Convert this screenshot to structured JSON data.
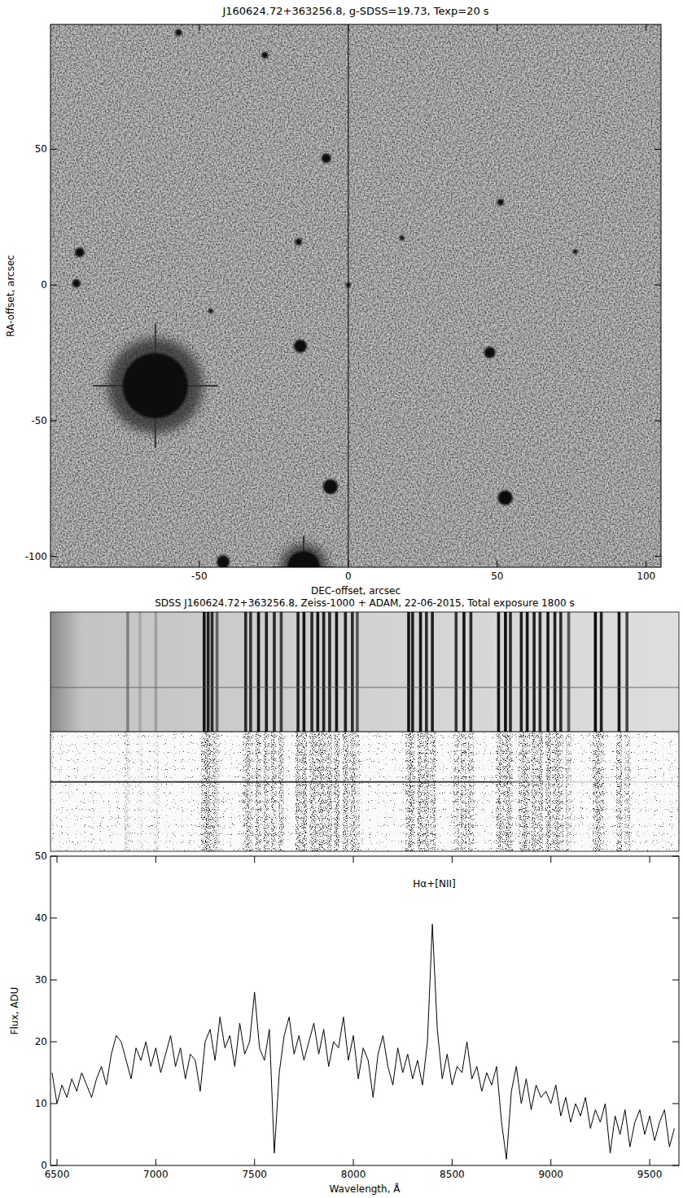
{
  "chart_data": [
    {
      "type": "image",
      "title": "J160624.72+363256.8, g-SDSS=19.73, Texp=20 s",
      "x_label": "DEC-offset, arcsec",
      "y_label": "RA-offset, arcsec",
      "xlim": [
        -100,
        105
      ],
      "ylim": [
        -104,
        96
      ],
      "xticks": [
        -50,
        0,
        50,
        100
      ],
      "yticks": [
        -100,
        -50,
        0,
        50
      ],
      "x": [
        0,
        -7.4,
        -16.7,
        -16.1,
        -6,
        47.5,
        52.7,
        51.1,
        18,
        76.2,
        -90.2,
        -91.3,
        -64.8,
        -15,
        -42,
        -28,
        -57,
        -46.2
      ],
      "y": [
        0,
        46.7,
        15.9,
        -22.5,
        -74.3,
        -24.9,
        -78.4,
        30.5,
        17.4,
        12.3,
        12,
        0.6,
        -37.1,
        -104,
        -102,
        84.7,
        93,
        -9.6
      ],
      "sizes": [
        0.8,
        1.6,
        1.1,
        2.2,
        2.5,
        1.9,
        2.5,
        1.1,
        0.8,
        0.8,
        1.6,
        1.4,
        11,
        5.5,
        2.2,
        1.1,
        1.1,
        0.8
      ],
      "slit_x": 0
    },
    {
      "type": "spectrum_2d",
      "title": "SDSS J160624.72+363256.8, Zeiss-1000 + ADAM, 22-06-2015, Total exposure 1800 s",
      "xlim": [
        6467,
        9648
      ],
      "sky_lines": [
        6858,
        6920,
        7000,
        7245,
        7265,
        7285,
        7310,
        7455,
        7480,
        7520,
        7560,
        7600,
        7635,
        7720,
        7750,
        7790,
        7820,
        7850,
        7880,
        7915,
        7960,
        7995,
        8020,
        8280,
        8300,
        8340,
        8370,
        8400,
        8520,
        8560,
        8595,
        8735,
        8770,
        8795,
        8850,
        8880,
        8915,
        8945,
        8985,
        9020,
        9050,
        9090,
        9225,
        9255,
        9345,
        9385
      ],
      "sky_strengths": [
        0.35,
        0.15,
        0.2,
        0.9,
        0.85,
        0.8,
        0.5,
        0.8,
        0.75,
        0.9,
        0.85,
        0.8,
        0.7,
        0.85,
        0.9,
        0.8,
        0.9,
        0.85,
        0.8,
        0.9,
        0.85,
        0.8,
        0.6,
        0.9,
        0.85,
        0.9,
        0.8,
        0.85,
        0.75,
        0.9,
        0.8,
        0.9,
        0.95,
        0.8,
        0.85,
        0.9,
        0.85,
        0.8,
        0.9,
        0.85,
        0.8,
        0.6,
        0.95,
        0.85,
        0.9,
        0.7
      ]
    },
    {
      "type": "line",
      "x_label": "Wavelength, Å",
      "y_label": "Flux, ADU",
      "xlim": [
        6467,
        9648
      ],
      "ylim": [
        0,
        50
      ],
      "xticks": [
        6500,
        7000,
        7500,
        8000,
        8500,
        9000,
        9500
      ],
      "yticks": [
        0,
        10,
        20,
        30,
        40,
        50
      ],
      "color": "#000000",
      "annotations": [
        {
          "text": "Hα+[NII]",
          "x": 8410,
          "y": 45
        }
      ],
      "x": [
        6475,
        6500,
        6525,
        6550,
        6575,
        6600,
        6625,
        6650,
        6675,
        6700,
        6725,
        6750,
        6775,
        6800,
        6825,
        6850,
        6875,
        6900,
        6925,
        6950,
        6975,
        7000,
        7025,
        7050,
        7075,
        7100,
        7125,
        7150,
        7175,
        7200,
        7225,
        7250,
        7275,
        7300,
        7325,
        7350,
        7375,
        7400,
        7425,
        7450,
        7475,
        7500,
        7525,
        7550,
        7575,
        7600,
        7625,
        7650,
        7675,
        7700,
        7725,
        7750,
        7775,
        7800,
        7825,
        7850,
        7875,
        7900,
        7925,
        7950,
        7975,
        8000,
        8025,
        8050,
        8075,
        8100,
        8125,
        8150,
        8175,
        8200,
        8225,
        8250,
        8275,
        8300,
        8325,
        8350,
        8375,
        8400,
        8425,
        8450,
        8475,
        8500,
        8525,
        8550,
        8575,
        8600,
        8625,
        8650,
        8675,
        8700,
        8725,
        8750,
        8775,
        8800,
        8825,
        8850,
        8875,
        8900,
        8925,
        8950,
        8975,
        9000,
        9025,
        9050,
        9075,
        9100,
        9125,
        9150,
        9175,
        9200,
        9225,
        9250,
        9275,
        9300,
        9325,
        9350,
        9375,
        9400,
        9425,
        9450,
        9475,
        9500,
        9525,
        9550,
        9575,
        9600,
        9625
      ],
      "values": [
        15,
        10,
        13,
        11,
        14,
        12,
        15,
        13,
        11,
        14,
        16,
        13,
        18,
        21,
        20,
        17,
        14,
        19,
        17,
        20,
        16,
        19,
        15,
        18,
        21,
        16,
        19,
        14,
        18,
        17,
        12,
        20,
        22,
        17,
        24,
        19,
        21,
        16,
        23,
        18,
        20,
        28,
        19,
        17,
        22,
        2,
        15,
        21,
        24,
        18,
        21,
        17,
        20,
        23,
        18,
        22,
        16,
        20,
        19,
        24,
        17,
        21,
        14,
        19,
        17,
        11,
        18,
        21,
        16,
        13,
        19,
        15,
        18,
        14,
        17,
        13,
        20,
        39,
        22,
        14,
        18,
        13,
        16,
        15,
        20,
        14,
        16,
        12,
        15,
        13,
        16,
        7,
        1,
        12,
        16,
        10,
        14,
        9,
        13,
        11,
        12,
        10,
        13,
        8,
        11,
        7,
        10,
        8,
        11,
        6,
        9,
        7,
        10,
        2,
        8,
        5,
        9,
        3,
        7,
        9,
        5,
        8,
        4,
        7,
        9,
        3,
        6
      ]
    }
  ]
}
